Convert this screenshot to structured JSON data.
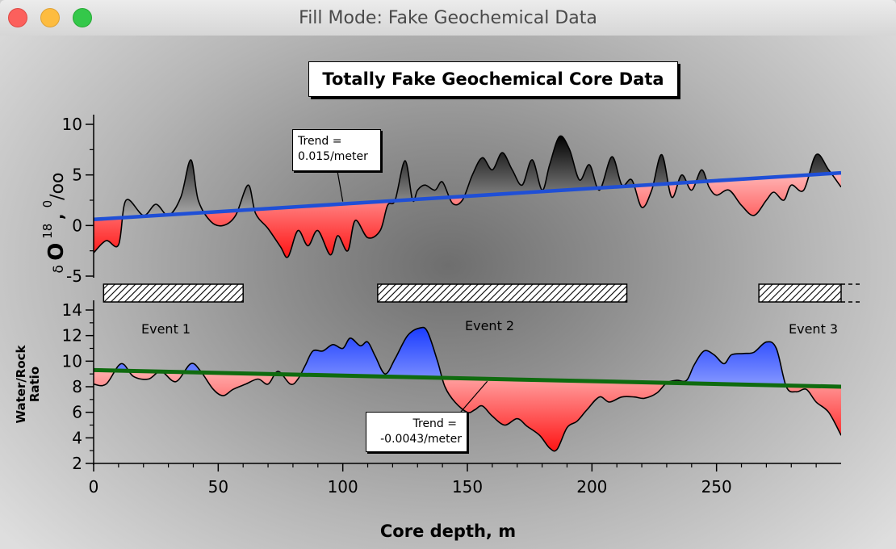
{
  "window": {
    "title": "Fill Mode: Fake Geochemical Data"
  },
  "chart_data": {
    "type": "area",
    "title": "Totally Fake Geochemical Core Data",
    "xlabel": "Core depth, m",
    "xlim": [
      0,
      300
    ],
    "x_ticks": [
      "0",
      "50",
      "100",
      "150",
      "200",
      "250"
    ],
    "panels": [
      {
        "name": "oxygen-isotope",
        "ylabel": "δ O 18 0/oo",
        "ylim": [
          -5,
          10
        ],
        "y_ticks": [
          "10",
          "5",
          "0",
          "-5"
        ],
        "fill": {
          "above_trend": "black-to-white gradient",
          "below_trend": "red-to-white gradient"
        },
        "series": {
          "x": [
            0,
            5,
            10,
            13,
            20,
            25,
            30,
            35,
            39,
            42,
            47,
            52,
            57,
            62,
            65,
            70,
            75,
            78,
            82,
            86,
            90,
            95,
            98,
            102,
            105,
            110,
            115,
            118,
            121,
            125,
            128,
            130,
            133,
            137,
            140,
            144,
            148,
            152,
            156,
            160,
            164,
            168,
            172,
            176,
            180,
            183,
            187,
            191,
            195,
            199,
            203,
            208,
            212,
            216,
            220,
            224,
            228,
            232,
            236,
            240,
            244,
            247,
            250,
            255,
            260,
            265,
            270,
            273,
            277,
            280,
            285,
            290,
            295,
            300
          ],
          "y": [
            -2.7,
            -1.5,
            -1.9,
            2.5,
            1.0,
            2.1,
            1.0,
            2.8,
            6.5,
            2.5,
            0.4,
            0,
            1.0,
            4.0,
            1.2,
            -0.3,
            -2.1,
            -3.1,
            -0.5,
            -2.0,
            -0.5,
            -2.9,
            -1.0,
            -2.5,
            0.5,
            -1.2,
            -0.5,
            2.0,
            2.5,
            6.4,
            2.5,
            3.5,
            4.0,
            3.5,
            4.3,
            2.2,
            2.5,
            5.0,
            6.7,
            5.5,
            7.2,
            5.5,
            4.0,
            6.5,
            3.5,
            6.0,
            8.8,
            7.5,
            4.5,
            6.0,
            3.5,
            6.8,
            4.0,
            4.5,
            1.8,
            3.5,
            7.0,
            2.8,
            5.0,
            3.5,
            5.5,
            3.8,
            3.0,
            3.5,
            2.0,
            1.0,
            2.5,
            3.3,
            2.5,
            4.0,
            3.5,
            7.0,
            5.5,
            3.8
          ]
        },
        "trend": {
          "x": [
            0,
            300
          ],
          "y": [
            0.6,
            5.2
          ],
          "color": "#1f4fd6"
        },
        "annotation": {
          "line1": "Trend =",
          "line2": "0.015/meter"
        }
      },
      {
        "name": "water-rock-ratio",
        "ylabel_line1": "Water/Rock",
        "ylabel_line2": "Ratio",
        "ylim": [
          2,
          14
        ],
        "y_ticks": [
          "14",
          "12",
          "10",
          "8",
          "6",
          "4",
          "2"
        ],
        "fill": {
          "above_trend": "blue-to-white gradient",
          "below_trend": "red-to-white gradient"
        },
        "series": {
          "x": [
            0,
            5,
            11,
            16,
            22,
            27,
            33,
            39,
            43,
            48,
            52,
            56,
            61,
            66,
            70,
            74,
            79,
            82,
            85,
            88,
            92,
            96,
            100,
            103,
            107,
            110,
            113,
            117,
            121,
            126,
            131,
            134,
            138,
            141,
            145,
            150,
            153,
            156,
            160,
            165,
            170,
            174,
            179,
            183,
            186,
            190,
            194,
            198,
            203,
            207,
            212,
            217,
            221,
            226,
            230,
            234,
            238,
            241,
            245,
            249,
            253,
            256,
            261,
            265,
            270,
            274,
            278,
            282,
            286,
            290,
            295,
            300
          ],
          "y": [
            8.2,
            8.2,
            9.8,
            8.8,
            8.6,
            9.2,
            8.4,
            9.8,
            9.2,
            7.8,
            7.3,
            7.8,
            8.2,
            8.6,
            8.2,
            9.2,
            8.2,
            8.6,
            9.7,
            10.8,
            10.8,
            11.3,
            11.0,
            11.8,
            11.2,
            11.5,
            10.4,
            9.0,
            10.2,
            12.0,
            12.6,
            12.3,
            10.0,
            8.0,
            6.8,
            6.0,
            6.2,
            6.5,
            5.7,
            5.0,
            5.5,
            4.9,
            4.2,
            3.2,
            3.1,
            4.8,
            5.3,
            6.2,
            7.2,
            6.8,
            7.2,
            7.2,
            7.1,
            7.5,
            8.3,
            8.5,
            8.5,
            9.7,
            10.8,
            10.5,
            9.8,
            10.5,
            10.6,
            10.7,
            11.5,
            11.0,
            8.0,
            7.6,
            7.8,
            6.8,
            6.0,
            4.2
          ]
        },
        "trend": {
          "x": [
            0,
            300
          ],
          "y": [
            9.3,
            8.0
          ],
          "color": "#0f6b0f"
        },
        "annotation": {
          "line1": "Trend =",
          "line2": "-0.0043/meter"
        }
      }
    ],
    "events": [
      {
        "label": "Event 1",
        "start": 4,
        "end": 60
      },
      {
        "label": "Event 2",
        "start": 114,
        "end": 214
      },
      {
        "label": "Event 3",
        "start": 267,
        "end": 300
      }
    ]
  }
}
